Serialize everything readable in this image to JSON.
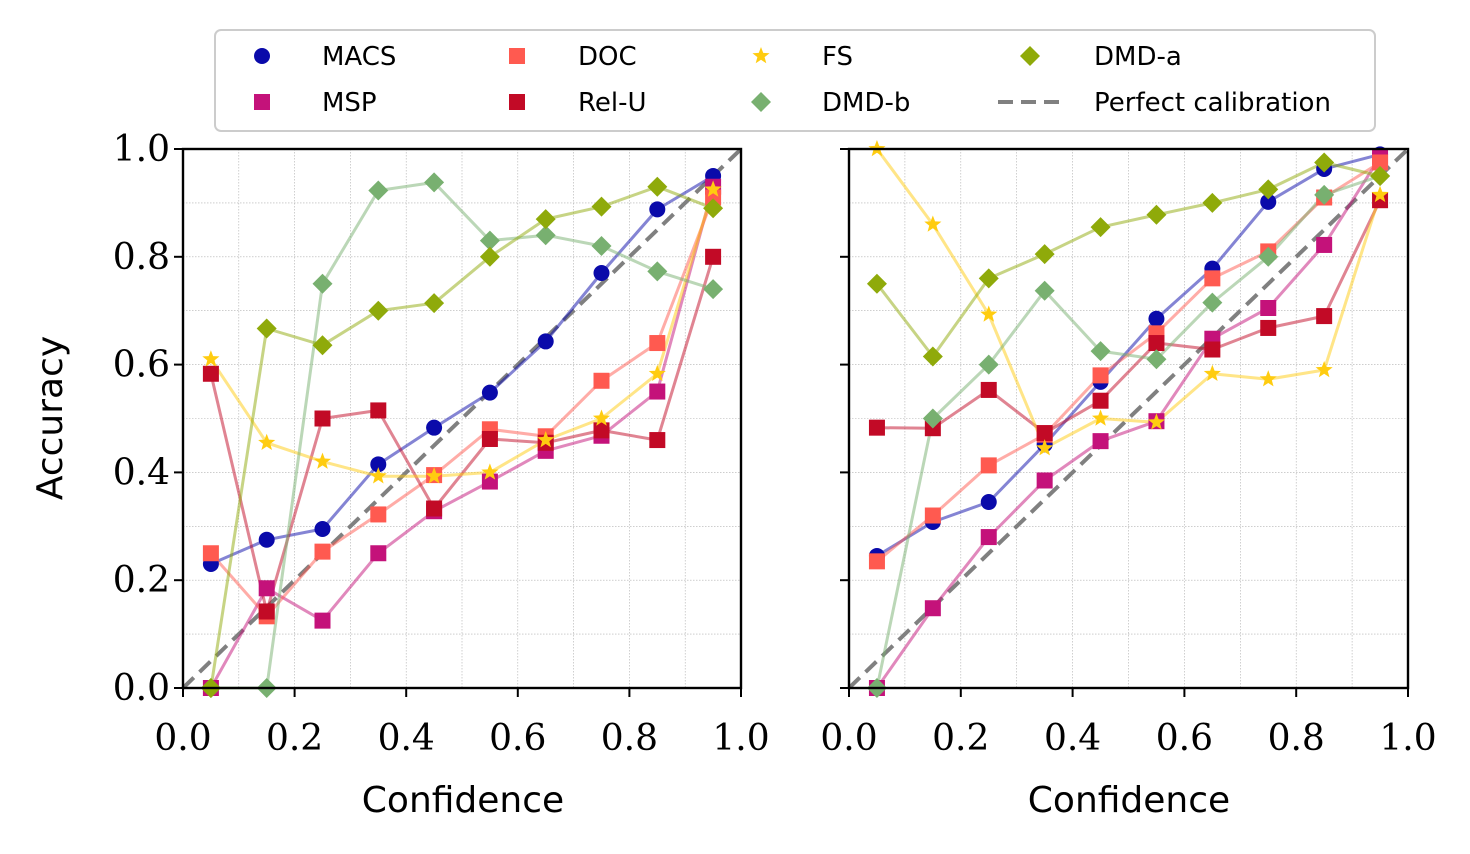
{
  "chart_data": [
    {
      "type": "line",
      "xlabel": "Confidence",
      "ylabel": "Accuracy",
      "xlim": [
        0,
        1
      ],
      "ylim": [
        0,
        1
      ],
      "xticks": [
        "0.0",
        "0.2",
        "0.4",
        "0.6",
        "0.8",
        "1.0"
      ],
      "yticks": [
        "0.0",
        "0.2",
        "0.4",
        "0.6",
        "0.8",
        "1.0"
      ],
      "grid": true,
      "x": [
        0.05,
        0.15,
        0.25,
        0.35,
        0.45,
        0.55,
        0.65,
        0.75,
        0.85,
        0.95
      ],
      "series": [
        {
          "name": "MACS",
          "color": "#0a0aaa",
          "marker": "circle",
          "values": [
            0.23,
            0.275,
            0.295,
            0.415,
            0.483,
            0.548,
            0.643,
            0.77,
            0.888,
            0.95
          ]
        },
        {
          "name": "MSP",
          "color": "#c4127a",
          "marker": "square",
          "values": [
            0.0,
            0.185,
            0.125,
            0.25,
            0.328,
            0.383,
            0.44,
            0.468,
            0.55,
            0.93
          ]
        },
        {
          "name": "DOC",
          "color": "#ff5a50",
          "marker": "square",
          "values": [
            0.25,
            0.133,
            0.253,
            0.322,
            0.395,
            0.48,
            0.467,
            0.57,
            0.64,
            0.91
          ]
        },
        {
          "name": "Rel-U",
          "color": "#c20a26",
          "marker": "square",
          "values": [
            0.583,
            0.142,
            0.5,
            0.515,
            0.333,
            0.462,
            0.455,
            0.478,
            0.46,
            0.8
          ]
        },
        {
          "name": "FS",
          "color": "#ffcc10",
          "marker": "star",
          "values": [
            0.61,
            0.455,
            0.42,
            0.393,
            0.393,
            0.4,
            0.46,
            0.5,
            0.583,
            0.925
          ]
        },
        {
          "name": "DMD-b",
          "color": "#78b070",
          "marker": "diamond",
          "values": [
            0.0,
            0.0,
            0.75,
            0.923,
            0.938,
            0.83,
            0.84,
            0.82,
            0.773,
            0.74
          ]
        },
        {
          "name": "DMD-a",
          "color": "#8faa0a",
          "marker": "diamond",
          "values": [
            0.0,
            0.667,
            0.636,
            0.7,
            0.714,
            0.8,
            0.87,
            0.893,
            0.93,
            0.89
          ]
        }
      ]
    },
    {
      "type": "line",
      "xlabel": "Confidence",
      "ylabel": "",
      "xlim": [
        0,
        1
      ],
      "ylim": [
        0,
        1
      ],
      "xticks": [
        "0.0",
        "0.2",
        "0.4",
        "0.6",
        "0.8",
        "1.0"
      ],
      "yticks": [],
      "grid": true,
      "x": [
        0.05,
        0.15,
        0.25,
        0.35,
        0.45,
        0.55,
        0.65,
        0.75,
        0.85,
        0.95
      ],
      "series": [
        {
          "name": "MACS",
          "color": "#0a0aaa",
          "marker": "circle",
          "values": [
            0.245,
            0.308,
            0.345,
            0.452,
            0.568,
            0.685,
            0.778,
            0.902,
            0.963,
            0.99
          ]
        },
        {
          "name": "MSP",
          "color": "#c4127a",
          "marker": "square",
          "values": [
            0.0,
            0.148,
            0.28,
            0.385,
            0.458,
            0.495,
            0.648,
            0.705,
            0.822,
            0.985
          ]
        },
        {
          "name": "DOC",
          "color": "#ff5a50",
          "marker": "square",
          "values": [
            0.235,
            0.32,
            0.413,
            0.47,
            0.58,
            0.658,
            0.76,
            0.81,
            0.91,
            0.975
          ]
        },
        {
          "name": "Rel-U",
          "color": "#c20a26",
          "marker": "square",
          "values": [
            0.483,
            0.482,
            0.553,
            0.473,
            0.533,
            0.64,
            0.628,
            0.668,
            0.69,
            0.905
          ]
        },
        {
          "name": "FS",
          "color": "#ffcc10",
          "marker": "star",
          "values": [
            1.0,
            0.86,
            0.693,
            0.445,
            0.5,
            0.493,
            0.583,
            0.573,
            0.59,
            0.915
          ]
        },
        {
          "name": "DMD-b",
          "color": "#78b070",
          "marker": "diamond",
          "values": [
            0.0,
            0.5,
            0.6,
            0.737,
            0.625,
            0.61,
            0.715,
            0.8,
            0.915,
            0.95
          ]
        },
        {
          "name": "DMD-a",
          "color": "#8faa0a",
          "marker": "diamond",
          "values": [
            0.75,
            0.615,
            0.76,
            0.805,
            0.855,
            0.878,
            0.9,
            0.925,
            0.975,
            0.95
          ]
        }
      ]
    }
  ],
  "legend": {
    "location": "top-center",
    "entries": [
      {
        "label": "MACS",
        "color": "#0a0aaa",
        "marker": "circle"
      },
      {
        "label": "DOC",
        "color": "#ff5a50",
        "marker": "square"
      },
      {
        "label": "FS",
        "color": "#ffcc10",
        "marker": "star"
      },
      {
        "label": "DMD-a",
        "color": "#8faa0a",
        "marker": "diamond"
      },
      {
        "label": "MSP",
        "color": "#c4127a",
        "marker": "square"
      },
      {
        "label": "Rel-U",
        "color": "#c20a26",
        "marker": "square"
      },
      {
        "label": "DMD-b",
        "color": "#78b070",
        "marker": "diamond"
      },
      {
        "label": "Perfect calibration",
        "color": "#808080",
        "marker": "dashed-line"
      }
    ]
  }
}
